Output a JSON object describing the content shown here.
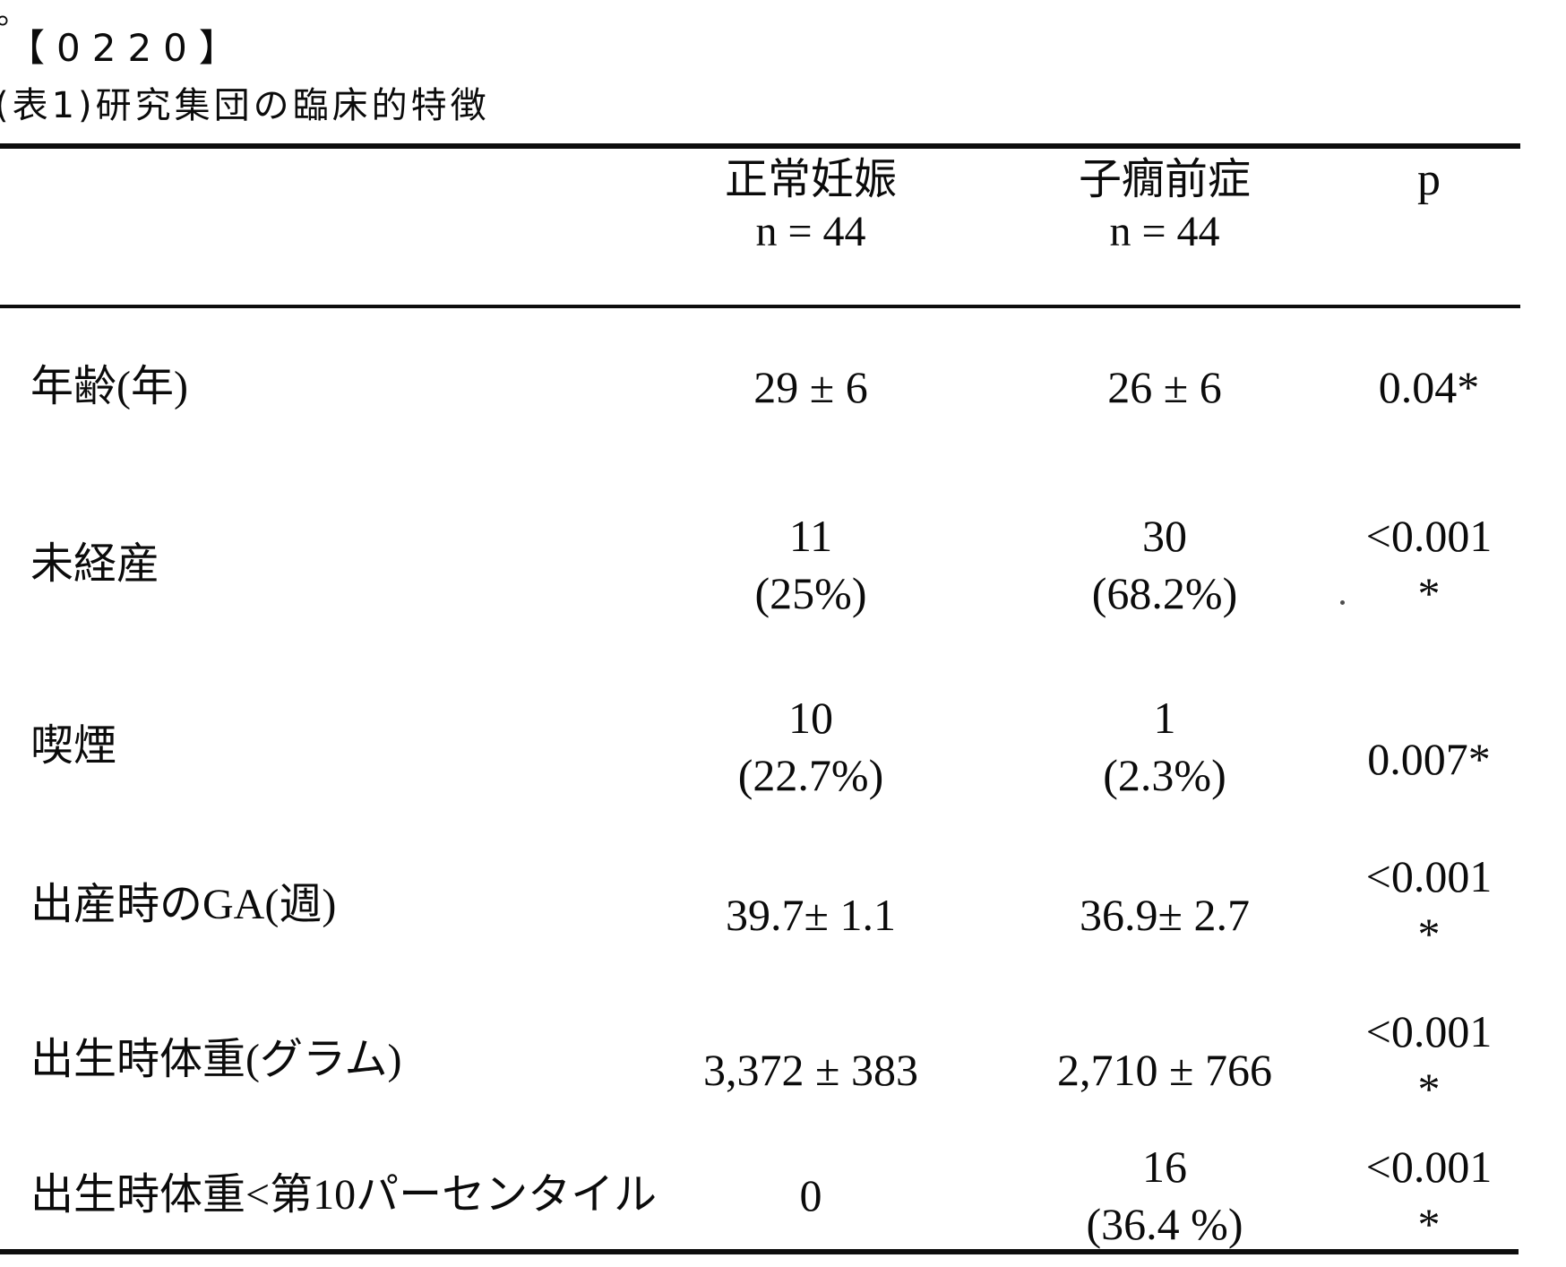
{
  "page": {
    "stray_mark": "。",
    "paragraph_number": "【0220】",
    "table_caption": "(表1)研究集団の臨床的特徴"
  },
  "table": {
    "header": {
      "normal": {
        "line1": "正常妊娠",
        "line2": "n = 44"
      },
      "preeclampsia": {
        "line1": "子癇前症",
        "line2": "n = 44"
      },
      "p": "p"
    },
    "rows": [
      {
        "label": "年齢(年)",
        "normal": [
          "29 ± 6"
        ],
        "preeclampsia": [
          "26 ± 6"
        ],
        "p": [
          "0.04*"
        ]
      },
      {
        "label": "未経産",
        "normal": [
          "11",
          "(25%)"
        ],
        "preeclampsia": [
          "30",
          "(68.2%)"
        ],
        "p": [
          "<0.001",
          "*"
        ]
      },
      {
        "label": "喫煙",
        "normal": [
          "10",
          "(22.7%)"
        ],
        "preeclampsia": [
          "1",
          "(2.3%)"
        ],
        "p": [
          "0.007*"
        ]
      },
      {
        "label": "出産時のGA(週)",
        "normal": [
          "39.7± 1.1"
        ],
        "preeclampsia": [
          "36.9± 2.7"
        ],
        "p": [
          "<0.001",
          "*"
        ]
      },
      {
        "label": "出生時体重(グラム)",
        "normal": [
          "3,372 ± 383"
        ],
        "preeclampsia": [
          "2,710 ± 766"
        ],
        "p": [
          "<0.001",
          "*"
        ]
      },
      {
        "label": "出生時体重<第10パーセンタイル",
        "normal": [
          "0"
        ],
        "preeclampsia": [
          "16",
          "(36.4 %)"
        ],
        "p": [
          "<0.001",
          "*"
        ]
      }
    ]
  }
}
